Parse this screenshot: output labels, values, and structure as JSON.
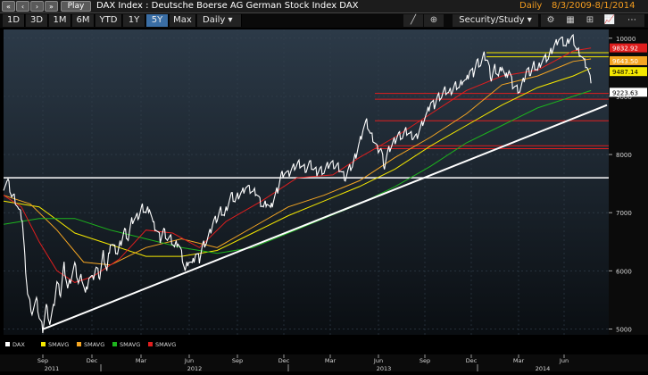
{
  "topbar": {
    "nav_icons": [
      "rewind-icon",
      "step-back-icon",
      "step-forward-icon",
      "fast-forward-icon"
    ],
    "play_label": "Play",
    "title": "DAX Index : Deutsche Boerse AG German Stock Index DAX",
    "frequency": "Daily",
    "date_range": "8/3/2009-8/1/2014"
  },
  "toolbar": {
    "periods": [
      "1D",
      "3D",
      "1M",
      "6M",
      "YTD",
      "1Y",
      "5Y",
      "Max"
    ],
    "active_period": "5Y",
    "interval": "Daily",
    "security_study_label": "Security/Study"
  },
  "colors": {
    "price": "#ffffff",
    "sma_yellow": "#f5e800",
    "sma_orange": "#f5a623",
    "sma_green": "#1db51d",
    "sma_red": "#e01e1e",
    "background": "#000000",
    "grid": "#2a3440"
  },
  "chart_data": {
    "type": "line",
    "series_name": "DAX",
    "legend": [
      "DAX",
      "SMAVG",
      "SMAVG",
      "SMAVG",
      "SMAVG"
    ],
    "legend_placement": "bottom-left",
    "ylim": [
      4900,
      10150
    ],
    "y_ticks": [
      5000,
      6000,
      7000,
      8000,
      9000,
      10000
    ],
    "x_tick_labels": [
      "Sep",
      "Dec",
      "Mar",
      "Jun",
      "Sep",
      "Dec",
      "Mar",
      "Jun",
      "Sep",
      "Dec",
      "Mar",
      "Jun"
    ],
    "year_labels": [
      "2011",
      "2012",
      "2013",
      "2014"
    ],
    "value_labels": [
      {
        "text": "9832.92",
        "value": 9832.92,
        "color": "#e01e1e"
      },
      {
        "text": "9643.50",
        "value": 9643.5,
        "color": "#f5a623"
      },
      {
        "text": "9487.14",
        "value": 9487.14,
        "color": "#f5e800"
      },
      {
        "text": "9223.63",
        "value": 9223.63,
        "color": "#ffffff"
      }
    ],
    "price_points": [
      [
        0,
        7450
      ],
      [
        5,
        7550
      ],
      [
        9,
        7300
      ],
      [
        12,
        7250
      ],
      [
        17,
        7050
      ],
      [
        21,
        6900
      ],
      [
        24,
        6200
      ],
      [
        27,
        5600
      ],
      [
        32,
        5300
      ],
      [
        37,
        5500
      ],
      [
        40,
        5200
      ],
      [
        44,
        5000
      ],
      [
        48,
        5400
      ],
      [
        52,
        5100
      ],
      [
        56,
        5350
      ],
      [
        60,
        5800
      ],
      [
        64,
        5600
      ],
      [
        68,
        6100
      ],
      [
        72,
        5700
      ],
      [
        76,
        5900
      ],
      [
        80,
        6100
      ],
      [
        84,
        5800
      ],
      [
        88,
        5900
      ],
      [
        92,
        5600
      ],
      [
        96,
        5900
      ],
      [
        100,
        5850
      ],
      [
        104,
        6050
      ],
      [
        108,
        5900
      ],
      [
        112,
        6300
      ],
      [
        116,
        6000
      ],
      [
        120,
        6500
      ],
      [
        124,
        6400
      ],
      [
        128,
        6300
      ],
      [
        132,
        6500
      ],
      [
        136,
        6700
      ],
      [
        140,
        6550
      ],
      [
        144,
        6850
      ],
      [
        148,
        6900
      ],
      [
        152,
        6950
      ],
      [
        156,
        7100
      ],
      [
        160,
        7000
      ],
      [
        164,
        7100
      ],
      [
        168,
        6800
      ],
      [
        172,
        6700
      ],
      [
        176,
        6550
      ],
      [
        180,
        6700
      ],
      [
        184,
        6550
      ],
      [
        188,
        6550
      ],
      [
        192,
        6400
      ],
      [
        196,
        6500
      ],
      [
        200,
        6300
      ],
      [
        204,
        6000
      ],
      [
        208,
        6200
      ],
      [
        212,
        6100
      ],
      [
        216,
        6300
      ],
      [
        220,
        6200
      ],
      [
        224,
        6450
      ],
      [
        228,
        6500
      ],
      [
        232,
        6650
      ],
      [
        236,
        6850
      ],
      [
        240,
        6900
      ],
      [
        244,
        7050
      ],
      [
        248,
        6950
      ],
      [
        252,
        7150
      ],
      [
        256,
        7300
      ],
      [
        260,
        7200
      ],
      [
        264,
        7300
      ],
      [
        268,
        7350
      ],
      [
        272,
        7450
      ],
      [
        276,
        7400
      ],
      [
        280,
        7350
      ],
      [
        284,
        7350
      ],
      [
        288,
        7200
      ],
      [
        292,
        7100
      ],
      [
        296,
        7200
      ],
      [
        300,
        7050
      ],
      [
        304,
        7250
      ],
      [
        308,
        7400
      ],
      [
        312,
        7650
      ],
      [
        316,
        7700
      ],
      [
        320,
        7650
      ],
      [
        324,
        7750
      ],
      [
        328,
        7800
      ],
      [
        332,
        7850
      ],
      [
        336,
        7800
      ],
      [
        340,
        7750
      ],
      [
        344,
        7850
      ],
      [
        348,
        7750
      ],
      [
        352,
        7700
      ],
      [
        356,
        7750
      ],
      [
        360,
        7700
      ],
      [
        364,
        7800
      ],
      [
        368,
        7850
      ],
      [
        372,
        7800
      ],
      [
        376,
        7800
      ],
      [
        380,
        7700
      ],
      [
        384,
        7600
      ],
      [
        388,
        7750
      ],
      [
        392,
        7800
      ],
      [
        396,
        8000
      ],
      [
        400,
        8200
      ],
      [
        404,
        8450
      ],
      [
        408,
        8550
      ],
      [
        412,
        8350
      ],
      [
        416,
        8250
      ],
      [
        420,
        8100
      ],
      [
        424,
        8100
      ],
      [
        428,
        7800
      ],
      [
        432,
        8050
      ],
      [
        436,
        8150
      ],
      [
        440,
        8250
      ],
      [
        444,
        8350
      ],
      [
        448,
        8300
      ],
      [
        452,
        8400
      ],
      [
        456,
        8350
      ],
      [
        460,
        8300
      ],
      [
        464,
        8300
      ],
      [
        468,
        8450
      ],
      [
        472,
        8600
      ],
      [
        476,
        8700
      ],
      [
        480,
        8900
      ],
      [
        484,
        8850
      ],
      [
        488,
        9000
      ],
      [
        492,
        9000
      ],
      [
        496,
        9100
      ],
      [
        500,
        9050
      ],
      [
        504,
        9100
      ],
      [
        508,
        9200
      ],
      [
        512,
        9150
      ],
      [
        516,
        9300
      ],
      [
        520,
        9250
      ],
      [
        524,
        9450
      ],
      [
        528,
        9400
      ],
      [
        532,
        9600
      ],
      [
        536,
        9550
      ],
      [
        540,
        9700
      ],
      [
        544,
        9600
      ],
      [
        548,
        9300
      ],
      [
        552,
        9500
      ],
      [
        556,
        9350
      ],
      [
        560,
        9550
      ],
      [
        564,
        9300
      ],
      [
        568,
        9450
      ],
      [
        572,
        9200
      ],
      [
        576,
        9150
      ],
      [
        580,
        9100
      ],
      [
        584,
        9250
      ],
      [
        588,
        9450
      ],
      [
        592,
        9400
      ],
      [
        596,
        9550
      ],
      [
        600,
        9450
      ],
      [
        604,
        9600
      ],
      [
        608,
        9650
      ],
      [
        612,
        9650
      ],
      [
        616,
        9800
      ],
      [
        620,
        9900
      ],
      [
        624,
        10000
      ],
      [
        628,
        9950
      ],
      [
        632,
        9850
      ],
      [
        636,
        10000
      ],
      [
        640,
        10000
      ],
      [
        644,
        9800
      ],
      [
        648,
        9750
      ],
      [
        652,
        9600
      ],
      [
        656,
        9500
      ],
      [
        660,
        9223.63
      ]
    ],
    "moving_averages": [
      {
        "color": "#f5e800",
        "points": [
          [
            0,
            7200
          ],
          [
            40,
            7100
          ],
          [
            80,
            6650
          ],
          [
            120,
            6450
          ],
          [
            160,
            6250
          ],
          [
            200,
            6250
          ],
          [
            240,
            6350
          ],
          [
            280,
            6650
          ],
          [
            320,
            6950
          ],
          [
            360,
            7200
          ],
          [
            400,
            7450
          ],
          [
            440,
            7750
          ],
          [
            480,
            8150
          ],
          [
            520,
            8500
          ],
          [
            560,
            8850
          ],
          [
            600,
            9150
          ],
          [
            640,
            9350
          ],
          [
            660,
            9487.14
          ]
        ]
      },
      {
        "color": "#f5a623",
        "points": [
          [
            0,
            7300
          ],
          [
            30,
            7150
          ],
          [
            60,
            6700
          ],
          [
            90,
            6150
          ],
          [
            120,
            6100
          ],
          [
            160,
            6400
          ],
          [
            200,
            6550
          ],
          [
            240,
            6400
          ],
          [
            280,
            6750
          ],
          [
            320,
            7100
          ],
          [
            360,
            7300
          ],
          [
            400,
            7550
          ],
          [
            440,
            7950
          ],
          [
            480,
            8300
          ],
          [
            520,
            8700
          ],
          [
            560,
            9200
          ],
          [
            600,
            9350
          ],
          [
            640,
            9600
          ],
          [
            660,
            9643.5
          ]
        ]
      },
      {
        "color": "#1db51d",
        "points": [
          [
            0,
            6800
          ],
          [
            40,
            6900
          ],
          [
            80,
            6900
          ],
          [
            120,
            6700
          ],
          [
            160,
            6550
          ],
          [
            200,
            6400
          ],
          [
            240,
            6300
          ],
          [
            280,
            6400
          ],
          [
            320,
            6650
          ],
          [
            360,
            6900
          ],
          [
            400,
            7150
          ],
          [
            440,
            7450
          ],
          [
            480,
            7800
          ],
          [
            520,
            8200
          ],
          [
            560,
            8500
          ],
          [
            600,
            8800
          ],
          [
            640,
            9000
          ],
          [
            660,
            9100
          ]
        ]
      },
      {
        "color": "#e01e1e",
        "points": [
          [
            0,
            7300
          ],
          [
            20,
            7100
          ],
          [
            40,
            6500
          ],
          [
            60,
            6000
          ],
          [
            80,
            5800
          ],
          [
            100,
            5900
          ],
          [
            130,
            6200
          ],
          [
            160,
            6700
          ],
          [
            190,
            6650
          ],
          [
            220,
            6400
          ],
          [
            250,
            6850
          ],
          [
            290,
            7200
          ],
          [
            330,
            7600
          ],
          [
            370,
            7650
          ],
          [
            400,
            7950
          ],
          [
            440,
            8300
          ],
          [
            480,
            8700
          ],
          [
            520,
            9100
          ],
          [
            560,
            9350
          ],
          [
            600,
            9450
          ],
          [
            640,
            9780
          ],
          [
            660,
            9832.92
          ]
        ]
      }
    ],
    "horizontal_levels": [
      {
        "value": 7600,
        "color": "#ffffff"
      },
      {
        "value": 9750,
        "color": "#f5e800"
      },
      {
        "value": 9680,
        "color": "#f5e800"
      },
      {
        "value": 9050,
        "color": "#e01e1e"
      },
      {
        "value": 8950,
        "color": "#e01e1e"
      },
      {
        "value": 8580,
        "color": "#e01e1e"
      },
      {
        "value": 8150,
        "color": "#e01e1e"
      },
      {
        "value": 8100,
        "color": "#e01e1e"
      }
    ],
    "trendline": {
      "from": [
        45,
        5000
      ],
      "to": [
        678,
        8850
      ],
      "color": "#ffffff"
    }
  }
}
